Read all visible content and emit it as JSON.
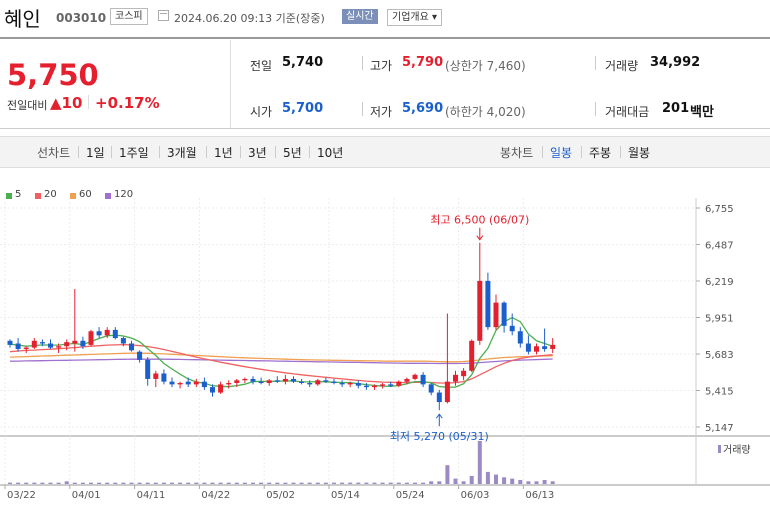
{
  "header": {
    "stock_name": "혜인",
    "stock_code": "003010",
    "market_badge": "코스피",
    "datetime": "2024.06.20 09:13 기준(장중)",
    "realtime_label": "실시간",
    "company_info_label": "기업개요 ▾"
  },
  "summary": {
    "current_price": "5,750",
    "change_label": "전일대비",
    "change_arrow": "▲",
    "change_value": "10",
    "change_percent": "+0.17%",
    "prev_close_label": "전일",
    "prev_close": "5,740",
    "open_label": "시가",
    "open": "5,700",
    "high_label": "고가",
    "high": "5,790",
    "upper_limit_label": "(상한가 7,460)",
    "low_label": "저가",
    "low": "5,690",
    "lower_limit_label": "(하한가 4,020)",
    "volume_label": "거래량",
    "volume": "34,992",
    "amount_label": "거래대금",
    "amount": "201",
    "amount_unit": "백만"
  },
  "periods": {
    "line_chart_label": "선차트",
    "items": [
      "1일",
      "1주일",
      "3개월",
      "1년",
      "3년",
      "5년",
      "10년"
    ],
    "candle_chart_label": "봉차트",
    "candle_items": [
      "일봉",
      "주봉",
      "월봉"
    ],
    "active_candle": "일봉"
  },
  "colors": {
    "up": "#e4202e",
    "down": "#1b5fcc",
    "ma5": "#4caf50",
    "ma20": "#f06060",
    "ma60": "#f0a050",
    "ma120": "#a070d0"
  },
  "chart_data": {
    "type": "candlestick",
    "legend": [
      "5",
      "20",
      "60",
      "120"
    ],
    "y_ticks": [
      6755,
      6487,
      6219,
      5951,
      5683,
      5415,
      5147
    ],
    "ylim": [
      5147,
      6755
    ],
    "x_ticks": [
      "03/22",
      "04/01",
      "04/11",
      "04/22",
      "05/02",
      "05/14",
      "05/24",
      "06/03",
      "06/13"
    ],
    "x_tick_index": [
      0,
      8,
      16,
      24,
      32,
      40,
      48,
      56,
      64
    ],
    "high_annotation": "최고 6,500 (06/07)",
    "low_annotation": "최저 5,270 (05/31)",
    "high_annotation_index": 58,
    "low_annotation_index": 53,
    "volume_label": "거래량",
    "candles": [
      [
        5780,
        5790,
        5730,
        5750
      ],
      [
        5760,
        5800,
        5700,
        5720
      ],
      [
        5720,
        5740,
        5690,
        5730
      ],
      [
        5730,
        5800,
        5720,
        5780
      ],
      [
        5770,
        5790,
        5740,
        5760
      ],
      [
        5760,
        5790,
        5720,
        5730
      ],
      [
        5730,
        5760,
        5690,
        5740
      ],
      [
        5740,
        5790,
        5710,
        5770
      ],
      [
        5760,
        6160,
        5700,
        5780
      ],
      [
        5780,
        5810,
        5720,
        5740
      ],
      [
        5750,
        5860,
        5740,
        5850
      ],
      [
        5850,
        5880,
        5800,
        5820
      ],
      [
        5820,
        5880,
        5800,
        5860
      ],
      [
        5860,
        5880,
        5790,
        5800
      ],
      [
        5800,
        5810,
        5740,
        5760
      ],
      [
        5760,
        5780,
        5700,
        5710
      ],
      [
        5700,
        5710,
        5620,
        5640
      ],
      [
        5640,
        5660,
        5450,
        5500
      ],
      [
        5500,
        5560,
        5440,
        5540
      ],
      [
        5540,
        5570,
        5460,
        5480
      ],
      [
        5480,
        5510,
        5440,
        5460
      ],
      [
        5460,
        5480,
        5430,
        5470
      ],
      [
        5480,
        5510,
        5440,
        5460
      ],
      [
        5460,
        5500,
        5440,
        5480
      ],
      [
        5480,
        5510,
        5420,
        5440
      ],
      [
        5440,
        5460,
        5370,
        5400
      ],
      [
        5400,
        5480,
        5390,
        5460
      ],
      [
        5460,
        5490,
        5430,
        5470
      ],
      [
        5470,
        5500,
        5440,
        5490
      ],
      [
        5490,
        5510,
        5470,
        5500
      ],
      [
        5500,
        5520,
        5460,
        5480
      ],
      [
        5480,
        5510,
        5460,
        5470
      ],
      [
        5470,
        5500,
        5450,
        5490
      ],
      [
        5490,
        5520,
        5470,
        5480
      ],
      [
        5480,
        5530,
        5460,
        5500
      ],
      [
        5500,
        5520,
        5470,
        5480
      ],
      [
        5480,
        5500,
        5460,
        5470
      ],
      [
        5470,
        5490,
        5440,
        5460
      ],
      [
        5460,
        5500,
        5450,
        5490
      ],
      [
        5490,
        5510,
        5470,
        5480
      ],
      [
        5480,
        5500,
        5460,
        5470
      ],
      [
        5470,
        5490,
        5440,
        5460
      ],
      [
        5460,
        5480,
        5440,
        5470
      ],
      [
        5470,
        5490,
        5430,
        5450
      ],
      [
        5450,
        5470,
        5420,
        5440
      ],
      [
        5440,
        5460,
        5420,
        5450
      ],
      [
        5450,
        5470,
        5430,
        5460
      ],
      [
        5460,
        5480,
        5440,
        5450
      ],
      [
        5450,
        5490,
        5440,
        5480
      ],
      [
        5480,
        5510,
        5460,
        5500
      ],
      [
        5500,
        5540,
        5490,
        5530
      ],
      [
        5530,
        5550,
        5440,
        5460
      ],
      [
        5460,
        5470,
        5380,
        5400
      ],
      [
        5400,
        5420,
        5270,
        5330
      ],
      [
        5330,
        5980,
        5320,
        5480
      ],
      [
        5480,
        5560,
        5450,
        5530
      ],
      [
        5520,
        5580,
        5490,
        5560
      ],
      [
        5560,
        5790,
        5550,
        5780
      ],
      [
        5780,
        6500,
        5750,
        6220
      ],
      [
        6220,
        6280,
        5860,
        5880
      ],
      [
        5880,
        6120,
        5860,
        6060
      ],
      [
        6060,
        6070,
        5840,
        5890
      ],
      [
        5890,
        5980,
        5820,
        5850
      ],
      [
        5850,
        5880,
        5730,
        5760
      ],
      [
        5760,
        5820,
        5680,
        5700
      ],
      [
        5700,
        5760,
        5680,
        5740
      ],
      [
        5740,
        5870,
        5700,
        5720
      ],
      [
        5720,
        5800,
        5690,
        5750
      ]
    ],
    "volume": [
      1,
      1,
      1,
      1,
      1,
      1,
      1,
      2,
      1,
      1,
      1,
      1,
      1,
      1,
      1,
      1,
      1,
      1,
      1,
      1,
      1,
      1,
      1,
      1,
      1,
      1,
      1,
      1,
      1,
      1,
      1,
      1,
      1,
      1,
      1,
      1,
      1,
      1,
      1,
      1,
      1,
      1,
      1,
      1,
      1,
      1,
      1,
      1,
      1,
      1,
      1,
      1,
      2,
      2,
      14,
      4,
      2,
      6,
      32,
      9,
      7,
      5,
      4,
      3,
      2,
      2,
      3,
      2
    ],
    "ma": {
      "5": [
        5755,
        5748,
        5740,
        5745,
        5750,
        5748,
        5748,
        5756,
        5760,
        5752,
        5775,
        5797,
        5817,
        5822,
        5815,
        5800,
        5773,
        5723,
        5672,
        5613,
        5573,
        5535,
        5500,
        5478,
        5468,
        5450,
        5446,
        5443,
        5451,
        5461,
        5480,
        5482,
        5482,
        5483,
        5485,
        5486,
        5478,
        5478,
        5480,
        5479,
        5476,
        5474,
        5472,
        5465,
        5458,
        5452,
        5447,
        5446,
        5452,
        5464,
        5480,
        5480,
        5471,
        5444,
        5439,
        5440,
        5465,
        5531,
        5650,
        5725,
        5856,
        5920,
        5950,
        5920,
        5830,
        5780,
        5760,
        5740
      ],
      "20": [
        5700,
        5705,
        5710,
        5712,
        5715,
        5718,
        5722,
        5726,
        5730,
        5735,
        5740,
        5744,
        5748,
        5750,
        5752,
        5750,
        5745,
        5738,
        5728,
        5716,
        5702,
        5688,
        5674,
        5660,
        5647,
        5635,
        5623,
        5612,
        5601,
        5590,
        5580,
        5571,
        5562,
        5553,
        5545,
        5537,
        5530,
        5524,
        5518,
        5512,
        5506,
        5500,
        5494,
        5489,
        5484,
        5480,
        5477,
        5475,
        5474,
        5474,
        5475,
        5476,
        5474,
        5470,
        5470,
        5473,
        5480,
        5500,
        5530,
        5560,
        5590,
        5615,
        5635,
        5650,
        5660,
        5668,
        5673,
        5678
      ],
      "60": [
        5660,
        5662,
        5664,
        5666,
        5668,
        5670,
        5672,
        5674,
        5676,
        5678,
        5680,
        5682,
        5684,
        5686,
        5688,
        5689,
        5689,
        5688,
        5686,
        5684,
        5681,
        5678,
        5675,
        5672,
        5669,
        5666,
        5663,
        5660,
        5657,
        5655,
        5653,
        5651,
        5649,
        5647,
        5645,
        5643,
        5641,
        5640,
        5639,
        5638,
        5637,
        5636,
        5635,
        5634,
        5633,
        5632,
        5631,
        5630,
        5630,
        5630,
        5630,
        5630,
        5629,
        5627,
        5626,
        5626,
        5628,
        5632,
        5640,
        5646,
        5652,
        5657,
        5660,
        5663,
        5665,
        5667,
        5668,
        5670
      ],
      "120": [
        5630,
        5631,
        5632,
        5633,
        5634,
        5635,
        5636,
        5637,
        5638,
        5639,
        5640,
        5641,
        5642,
        5643,
        5644,
        5645,
        5645,
        5645,
        5645,
        5645,
        5644,
        5643,
        5642,
        5641,
        5640,
        5639,
        5638,
        5637,
        5636,
        5635,
        5634,
        5633,
        5632,
        5631,
        5630,
        5629,
        5628,
        5627,
        5626,
        5625,
        5624,
        5623,
        5622,
        5621,
        5620,
        5619,
        5618,
        5617,
        5616,
        5615,
        5615,
        5615,
        5614,
        5613,
        5613,
        5613,
        5614,
        5616,
        5620,
        5624,
        5628,
        5632,
        5635,
        5638,
        5640,
        5642,
        5644,
        5646
      ]
    }
  }
}
